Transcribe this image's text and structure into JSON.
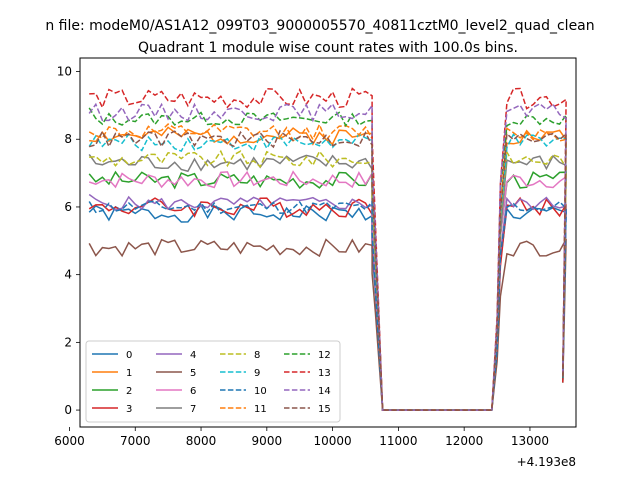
{
  "suptitle": "n file: modeM0/AS1A12_099T03_9000005570_40811cztM0_level2_quad_clean",
  "chart_data": {
    "type": "line",
    "title": "Quadrant 1 module wise count rates with 100.0s bins.",
    "xlabel": "",
    "ylabel": "",
    "x_offset_label": "+4.193e8",
    "xlim": [
      6160,
      13700
    ],
    "ylim": [
      -0.5,
      10.4
    ],
    "xticks": [
      6000,
      7000,
      8000,
      9000,
      10000,
      11000,
      12000,
      13000
    ],
    "xtick_labels": [
      "6000",
      "7000",
      "8000",
      "9000",
      "10000",
      "11000",
      "12000",
      "13000"
    ],
    "yticks": [
      0,
      2,
      4,
      6,
      8,
      10
    ],
    "ytick_labels": [
      "0",
      "2",
      "4",
      "6",
      "8",
      "10"
    ],
    "grid": false,
    "legend": {
      "placement": "lower-left",
      "columns": 4
    },
    "segments": [
      {
        "start": 6300,
        "end": 10700,
        "step": 100
      },
      {
        "start": 10700,
        "end": 12450,
        "step": 100,
        "gap": true
      },
      {
        "start": 12550,
        "end": 13550,
        "step": 100
      }
    ],
    "series": [
      {
        "name": "0",
        "color": "#1f77b4",
        "dash": "solid",
        "level": 5.8,
        "noise": 0.25,
        "seed": 1
      },
      {
        "name": "1",
        "color": "#ff7f0e",
        "dash": "solid",
        "level": 8.1,
        "noise": 0.25,
        "seed": 2
      },
      {
        "name": "2",
        "color": "#2ca02c",
        "dash": "solid",
        "level": 6.8,
        "noise": 0.25,
        "seed": 3
      },
      {
        "name": "3",
        "color": "#d62728",
        "dash": "solid",
        "level": 6.0,
        "noise": 0.3,
        "seed": 4
      },
      {
        "name": "4",
        "color": "#9467bd",
        "dash": "solid",
        "level": 6.1,
        "noise": 0.2,
        "seed": 5
      },
      {
        "name": "5",
        "color": "#8c564b",
        "dash": "solid",
        "level": 4.8,
        "noise": 0.25,
        "seed": 6
      },
      {
        "name": "6",
        "color": "#e377c2",
        "dash": "solid",
        "level": 6.8,
        "noise": 0.25,
        "seed": 7
      },
      {
        "name": "7",
        "color": "#7f7f7f",
        "dash": "solid",
        "level": 7.3,
        "noise": 0.25,
        "seed": 8
      },
      {
        "name": "8",
        "color": "#bcbd22",
        "dash": "dashed",
        "level": 7.4,
        "noise": 0.25,
        "seed": 9
      },
      {
        "name": "9",
        "color": "#17becf",
        "dash": "dashed",
        "level": 7.9,
        "noise": 0.25,
        "seed": 10
      },
      {
        "name": "10",
        "color": "#1f77b4",
        "dash": "dashed",
        "level": 6.0,
        "noise": 0.2,
        "seed": 11
      },
      {
        "name": "11",
        "color": "#ff7f0e",
        "dash": "dashed",
        "level": 8.2,
        "noise": 0.25,
        "seed": 12
      },
      {
        "name": "12",
        "color": "#2ca02c",
        "dash": "dashed",
        "level": 8.6,
        "noise": 0.2,
        "seed": 13
      },
      {
        "name": "13",
        "color": "#d62728",
        "dash": "dashed",
        "level": 9.2,
        "noise": 0.3,
        "seed": 14
      },
      {
        "name": "14",
        "color": "#9467bd",
        "dash": "dashed",
        "level": 8.8,
        "noise": 0.25,
        "seed": 15
      },
      {
        "name": "15",
        "color": "#8c564b",
        "dash": "dashed",
        "level": 8.0,
        "noise": 0.25,
        "seed": 16
      }
    ]
  }
}
